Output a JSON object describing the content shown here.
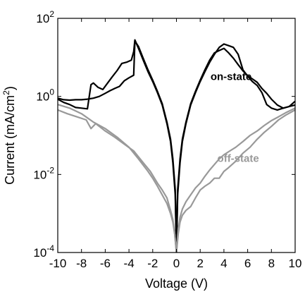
{
  "chart_data": {
    "type": "line",
    "xlabel": "Voltage (V)",
    "ylabel_main": "Current (mA/cm",
    "ylabel_sup": "2",
    "ylabel_tail": ")",
    "xlim": [
      -10,
      10
    ],
    "ylim": [
      0.0001,
      100
    ],
    "yscale": "log",
    "grid": false,
    "x_ticks": [
      -10,
      -8,
      -6,
      -4,
      -2,
      0,
      2,
      4,
      6,
      8,
      10
    ],
    "x_tick_labels": [
      "-10",
      "-8",
      "-6",
      "-4",
      "-2",
      "0",
      "2",
      "4",
      "6",
      "8",
      "10"
    ],
    "y_ticks": [
      {
        "value": 100,
        "base": "10",
        "exp": "2"
      },
      {
        "value": 1,
        "base": "10",
        "exp": "0"
      },
      {
        "value": 0.01,
        "base": "10",
        "exp": "-2"
      },
      {
        "value": 0.0001,
        "base": "10",
        "exp": "-4"
      }
    ],
    "annotations": [
      {
        "text": "on-state",
        "x": 4.6,
        "y": 2.6,
        "color": "#000000"
      },
      {
        "text": "off-state",
        "x": 5.2,
        "y": 0.021,
        "color": "#999999"
      }
    ],
    "series": [
      {
        "color": "#000000",
        "x": [
          -10,
          -9.5,
          -9,
          -8.5,
          -8,
          -7.5,
          -7.2,
          -7,
          -6.6,
          -6.2,
          -5.8,
          -5.4,
          -5,
          -4.6,
          -4.2,
          -3.8,
          -3.6,
          -3.5,
          -3.2,
          -2.8,
          -2.4,
          -2,
          -1.6,
          -1.2,
          -0.8,
          -0.5,
          -0.3,
          -0.1,
          0
        ],
        "y": [
          0.85,
          0.7,
          0.62,
          0.52,
          0.5,
          0.48,
          2.0,
          2.2,
          1.7,
          1.5,
          2.2,
          3.2,
          4.6,
          7.0,
          7.5,
          8.5,
          14,
          28,
          17,
          8.5,
          4.3,
          2.4,
          1.25,
          0.6,
          0.2,
          0.07,
          0.02,
          0.003,
          0.0001
        ]
      },
      {
        "color": "#000000",
        "x": [
          -10,
          -9.5,
          -9,
          -8.5,
          -8,
          -7.5,
          -7,
          -6.5,
          -6,
          -5.6,
          -5.2,
          -4.8,
          -4.4,
          -4,
          -3.6,
          -3.5,
          -3.2,
          -2.8,
          -2.4,
          -2,
          -1.6,
          -1.2,
          -0.8,
          -0.5,
          -0.3,
          -0.1,
          0
        ],
        "y": [
          0.9,
          0.82,
          0.8,
          0.82,
          0.82,
          0.85,
          0.9,
          1.0,
          1.2,
          1.4,
          1.6,
          1.8,
          2.5,
          3.0,
          3.5,
          26,
          19,
          9.5,
          4.8,
          2.6,
          1.35,
          0.65,
          0.22,
          0.08,
          0.025,
          0.004,
          0.0001
        ]
      },
      {
        "color": "#000000",
        "x": [
          0,
          0.1,
          0.3,
          0.5,
          0.8,
          1.2,
          1.6,
          2,
          2.4,
          2.8,
          3.2,
          3.6,
          4,
          4.4,
          4.8,
          5.2,
          5.6,
          6,
          6.4,
          6.8,
          7.2,
          7.6,
          8,
          8.5,
          9,
          9.5,
          10
        ],
        "y": [
          0.0001,
          0.003,
          0.02,
          0.07,
          0.2,
          0.6,
          1.25,
          2.4,
          4.3,
          7.5,
          12,
          18,
          22,
          20,
          18,
          12,
          4.8,
          3.3,
          2.4,
          1.9,
          1.25,
          0.62,
          0.5,
          0.45,
          0.5,
          0.55,
          0.6
        ]
      },
      {
        "color": "#000000",
        "x": [
          0,
          0.1,
          0.3,
          0.5,
          0.8,
          1.2,
          1.6,
          2,
          2.4,
          2.8,
          3.2,
          3.6,
          4,
          4.4,
          4.8,
          5.2,
          5.6,
          6,
          6.4,
          6.8,
          7.2,
          7.6,
          8,
          8.5,
          9,
          9.5,
          10
        ],
        "y": [
          0.0001,
          0.004,
          0.025,
          0.08,
          0.22,
          0.65,
          1.35,
          2.6,
          4.8,
          8.5,
          13,
          15,
          17,
          13,
          9.5,
          6.5,
          4.5,
          3.4,
          2.8,
          2.3,
          1.6,
          1.2,
          0.85,
          0.6,
          0.5,
          0.55,
          0.75
        ]
      },
      {
        "color": "#999999",
        "x": [
          -10,
          -9.2,
          -8.4,
          -7.6,
          -7.2,
          -6.8,
          -6,
          -5.2,
          -4.4,
          -3.6,
          -2.8,
          -2.2,
          -1.6,
          -1.2,
          -0.8,
          -0.5,
          -0.3,
          -0.15,
          0
        ],
        "y": [
          0.45,
          0.36,
          0.3,
          0.25,
          0.15,
          0.2,
          0.13,
          0.09,
          0.06,
          0.04,
          0.02,
          0.012,
          0.006,
          0.004,
          0.0025,
          0.0012,
          0.0007,
          0.0003,
          0.0001
        ]
      },
      {
        "color": "#999999",
        "x": [
          -10,
          -9,
          -8,
          -7,
          -6,
          -5,
          -4,
          -3.2,
          -2.4,
          -2,
          -1.6,
          -1.2,
          -0.8,
          -0.5,
          -0.3,
          -0.15,
          0
        ],
        "y": [
          0.62,
          0.5,
          0.36,
          0.22,
          0.15,
          0.09,
          0.05,
          0.025,
          0.012,
          0.008,
          0.005,
          0.003,
          0.0018,
          0.001,
          0.0006,
          0.0003,
          0.0001
        ]
      },
      {
        "color": "#999999",
        "x": [
          0,
          0.15,
          0.3,
          0.5,
          0.8,
          1.2,
          1.6,
          2,
          2.4,
          2.8,
          3.2,
          3.6,
          4,
          4.4,
          5,
          5.6,
          6.2,
          6.8,
          7.4,
          8,
          8.6,
          9.2,
          10
        ],
        "y": [
          0.0001,
          0.0003,
          0.0006,
          0.0009,
          0.0012,
          0.0015,
          0.0025,
          0.004,
          0.005,
          0.006,
          0.008,
          0.008,
          0.012,
          0.015,
          0.022,
          0.035,
          0.05,
          0.08,
          0.12,
          0.17,
          0.25,
          0.33,
          0.45
        ]
      },
      {
        "color": "#999999",
        "x": [
          0,
          0.15,
          0.3,
          0.5,
          0.8,
          1.2,
          1.6,
          2,
          2.4,
          2.8,
          3.2,
          3.6,
          4,
          4.5,
          5,
          5.6,
          6.2,
          6.8,
          7.4,
          8,
          8.6,
          9.2,
          10
        ],
        "y": [
          0.0001,
          0.0004,
          0.0008,
          0.0013,
          0.002,
          0.003,
          0.0045,
          0.006,
          0.009,
          0.013,
          0.018,
          0.025,
          0.032,
          0.04,
          0.05,
          0.07,
          0.1,
          0.13,
          0.18,
          0.24,
          0.3,
          0.38,
          0.5
        ]
      }
    ]
  }
}
